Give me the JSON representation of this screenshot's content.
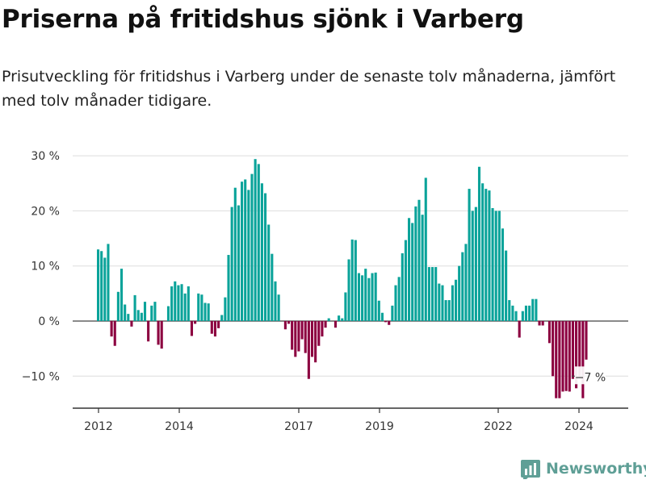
{
  "header": {
    "title": "Priserna på fritidshus sjönk i Varberg",
    "subtitle": "Prisutveckling för fritidshus i Varberg under de senaste tolv månaderna, jämfört med tolv månader tidigare."
  },
  "brand": {
    "name": "Newsworthy",
    "icon": "bar-chart-icon"
  },
  "colors": {
    "positive": "#0aa39a",
    "negative": "#8c0040",
    "grid": "#dddddd",
    "axis": "#333333"
  },
  "chart_data": {
    "type": "bar",
    "ylim": [
      -16,
      32
    ],
    "y_ticks": [
      -10,
      0,
      10,
      20,
      30
    ],
    "y_tick_labels": [
      "−10 %",
      "0 %",
      "10 %",
      "20 %",
      "30 %"
    ],
    "x_ticks": [
      "2012",
      "2014",
      "2017",
      "2019",
      "2022",
      "2024"
    ],
    "grid": true,
    "annotation": {
      "label": "−7 %",
      "value": -7
    },
    "series": [
      {
        "values": [
          13,
          12.7,
          11.5,
          14,
          -2.8,
          -4.5,
          5.3,
          9.5,
          3,
          1.3,
          -1,
          4.7,
          2,
          1.5,
          3.5,
          -3.7,
          2.8,
          3.5,
          -4.3,
          -5,
          0,
          2.7,
          6.3,
          7.2,
          6.5,
          6.7,
          5,
          6.3,
          -2.7,
          -0.5,
          5,
          4.8,
          3.3,
          3.2,
          -2.3,
          -2.8,
          -1.3,
          1.1,
          4.3,
          12,
          20.7,
          24.2,
          21,
          25.3,
          25.7,
          23.8,
          26.7,
          29.4,
          28.5,
          25,
          23.2,
          17.5,
          12.2,
          7.2,
          4.8,
          0,
          -1.5,
          -0.5,
          -5.2,
          -6.5,
          -5.5,
          -3.3,
          -5.8,
          -10.5,
          -6.5,
          -7.5,
          -4.5,
          -2.8,
          -1.2,
          0.5,
          0,
          -1.2,
          1,
          0.5,
          5.2,
          11.2,
          14.8,
          14.7,
          8.7,
          8.3,
          9.5,
          7.8,
          8.7,
          8.8,
          3.7,
          1.5,
          -0.2,
          -0.7,
          2.8,
          6.5,
          8,
          12.3,
          14.7,
          18.7,
          17.8,
          20.8,
          22,
          19.3,
          26,
          9.8,
          9.8,
          9.8,
          6.8,
          6.5,
          3.8,
          3.8,
          6.5,
          7.5,
          10,
          12.5,
          14,
          24,
          20,
          20.7,
          28,
          25,
          24,
          23.7,
          20.5,
          20,
          20,
          16.8,
          12.8,
          3.8,
          2.8,
          1.8,
          -3,
          1.8,
          2.8,
          2.8,
          4,
          4,
          -0.8,
          -0.8,
          0,
          -4,
          -10,
          -14,
          -14,
          -12.8,
          -12.7,
          -12.8,
          -10.5,
          -12.2,
          -10.3,
          -14,
          -7
        ]
      }
    ]
  }
}
